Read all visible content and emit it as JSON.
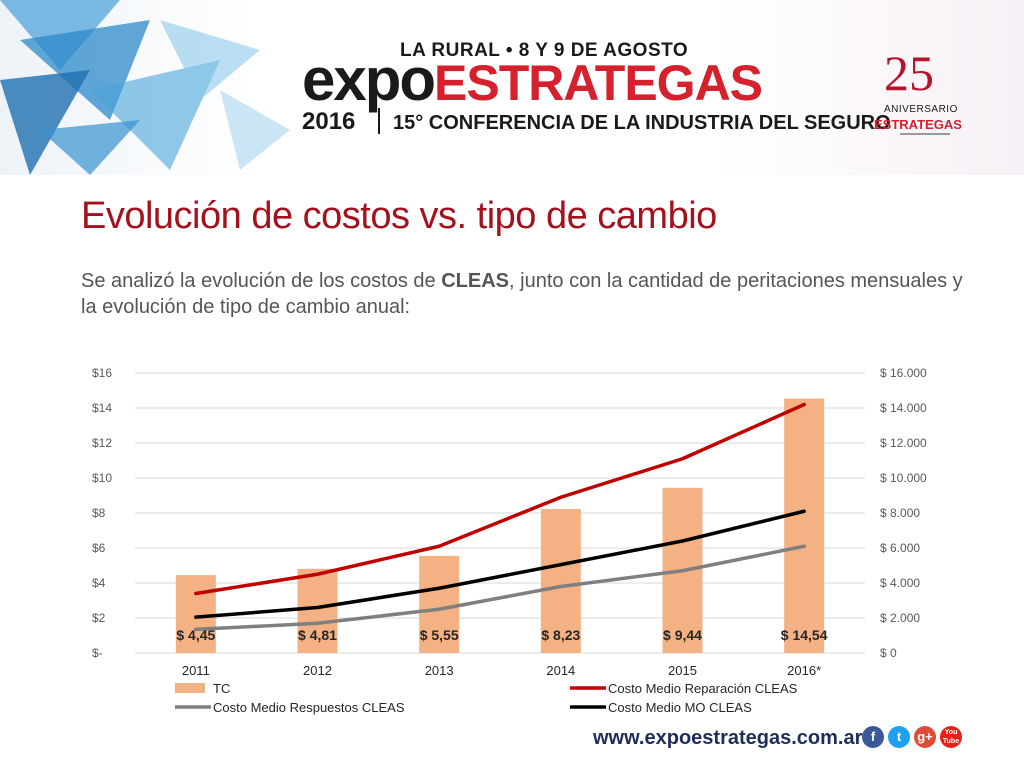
{
  "banner": {
    "event_line": "LA RURAL • 8 Y 9 DE AGOSTO",
    "brand_expo": "expo",
    "brand_estrategas": "ESTRATEGAS",
    "year": "2016",
    "conference": "15° CONFERENCIA DE LA INDUSTRIA DEL SEGURO",
    "anniversary_number": "25",
    "anniversary_word": "ANIVERSARIO",
    "anniversary_brand": "ESTRATEGAS",
    "colors": {
      "red": "#d6202e",
      "dark": "#1a1a1a"
    }
  },
  "slide": {
    "title": "Evolución de costos vs. tipo de cambio",
    "subtitle_pre": "Se analizó la evolución de los costos de ",
    "subtitle_bold": "CLEAS",
    "subtitle_post": ", junto con la cantidad de peritaciones mensuales y la evolución de tipo de cambio anual:"
  },
  "footer": {
    "url": "www.expoestrategas.com.ar",
    "social_icons": [
      "facebook-icon",
      "twitter-icon",
      "google-plus-icon",
      "youtube-icon"
    ],
    "social_labels": [
      "f",
      "t",
      "g+",
      "You Tube"
    ],
    "social_colors": [
      "#3b5998",
      "#1da1f2",
      "#dd4b39",
      "#e62117"
    ]
  },
  "chart_data": {
    "type": "bar",
    "categories": [
      "2011",
      "2012",
      "2013",
      "2014",
      "2015",
      "2016*"
    ],
    "left_axis": {
      "ticks": [
        "$-",
        "$2",
        "$4",
        "$6",
        "$8",
        "$10",
        "$12",
        "$14",
        "$16"
      ],
      "ylim": [
        0,
        16
      ]
    },
    "right_axis": {
      "ticks": [
        "$ 0",
        "$ 2.000",
        "$ 4.000",
        "$ 6.000",
        "$ 8.000",
        "$ 10.000",
        "$ 12.000",
        "$ 14.000",
        "$ 16.000"
      ],
      "ylim": [
        0,
        16000
      ]
    },
    "grid": true,
    "legend_position": "bottom",
    "bar_series": {
      "name": "TC",
      "values": [
        4.45,
        4.81,
        5.55,
        8.23,
        9.44,
        14.54
      ],
      "labels": [
        "$ 4,45",
        "$ 4,81",
        "$ 5,55",
        "$ 8,23",
        "$ 9,44",
        "$ 14,54"
      ],
      "color": "#f4b183"
    },
    "line_series": [
      {
        "name": "Costo Medio Reparación CLEAS",
        "values": [
          3400,
          4500,
          6100,
          8900,
          11100,
          14200
        ],
        "color": "#c00000"
      },
      {
        "name": "Costo Medio MO CLEAS",
        "values": [
          2050,
          2600,
          3700,
          5050,
          6400,
          8100
        ],
        "color": "#000000"
      },
      {
        "name": "Costo Medio Respuestos CLEAS",
        "values": [
          1350,
          1700,
          2500,
          3800,
          4700,
          6100
        ],
        "color": "#7f7f7f"
      }
    ],
    "legend": [
      {
        "label": "TC",
        "kind": "bar",
        "color": "#f4b183"
      },
      {
        "label": "Costo Medio Reparación CLEAS",
        "kind": "line",
        "color": "#c00000"
      },
      {
        "label": "Costo Medio Respuestos CLEAS",
        "kind": "line",
        "color": "#7f7f7f"
      },
      {
        "label": "Costo Medio MO CLEAS",
        "kind": "line",
        "color": "#000000"
      }
    ]
  }
}
